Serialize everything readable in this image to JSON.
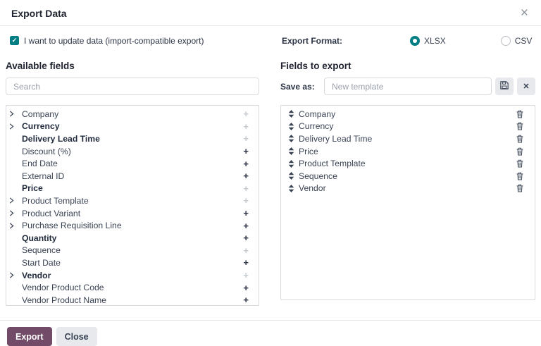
{
  "dialog": {
    "title": "Export Data"
  },
  "icons": {
    "close": "×",
    "check": "✓",
    "plus": "+",
    "clear": "✕"
  },
  "colors": {
    "accent_teal": "#017e84",
    "brand_purple": "#714B67"
  },
  "options": {
    "update_data_label": "I want to update data (import-compatible export)",
    "update_data_checked": true,
    "export_format_label": "Export Format:",
    "formats": [
      {
        "label": "XLSX",
        "selected": true
      },
      {
        "label": "CSV",
        "selected": false
      }
    ]
  },
  "available_fields": {
    "heading": "Available fields",
    "search_placeholder": "Search",
    "items": [
      {
        "label": "Company",
        "expandable": true,
        "bold": false,
        "addable": false
      },
      {
        "label": "Currency",
        "expandable": true,
        "bold": true,
        "addable": false
      },
      {
        "label": "Delivery Lead Time",
        "expandable": false,
        "bold": true,
        "addable": false
      },
      {
        "label": "Discount (%)",
        "expandable": false,
        "bold": false,
        "addable": true
      },
      {
        "label": "End Date",
        "expandable": false,
        "bold": false,
        "addable": true
      },
      {
        "label": "External ID",
        "expandable": false,
        "bold": false,
        "addable": true
      },
      {
        "label": "Price",
        "expandable": false,
        "bold": true,
        "addable": false
      },
      {
        "label": "Product Template",
        "expandable": true,
        "bold": false,
        "addable": false
      },
      {
        "label": "Product Variant",
        "expandable": true,
        "bold": false,
        "addable": true
      },
      {
        "label": "Purchase Requisition Line",
        "expandable": true,
        "bold": false,
        "addable": true
      },
      {
        "label": "Quantity",
        "expandable": false,
        "bold": true,
        "addable": true
      },
      {
        "label": "Sequence",
        "expandable": false,
        "bold": false,
        "addable": false
      },
      {
        "label": "Start Date",
        "expandable": false,
        "bold": false,
        "addable": true
      },
      {
        "label": "Vendor",
        "expandable": true,
        "bold": true,
        "addable": false
      },
      {
        "label": "Vendor Product Code",
        "expandable": false,
        "bold": false,
        "addable": true
      },
      {
        "label": "Vendor Product Name",
        "expandable": false,
        "bold": false,
        "addable": true
      }
    ]
  },
  "fields_to_export": {
    "heading": "Fields to export",
    "save_as_label": "Save as:",
    "template_placeholder": "New template",
    "items": [
      "Company",
      "Currency",
      "Delivery Lead Time",
      "Price",
      "Product Template",
      "Sequence",
      "Vendor"
    ]
  },
  "footer": {
    "export_label": "Export",
    "close_label": "Close"
  }
}
